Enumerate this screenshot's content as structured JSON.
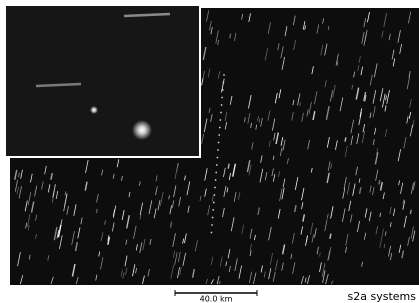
{
  "scale_bar": {
    "label": "40.0 km"
  },
  "credit": "s2a systems"
}
